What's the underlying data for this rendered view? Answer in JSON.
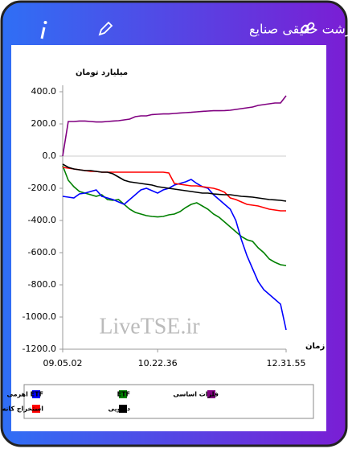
{
  "chart_data": {
    "type": "line",
    "title": "پول درشت حقیقی صنایع",
    "ylabel": "میلیارد تومان",
    "xlabel": "زمان",
    "watermark": "LiveTSE.ir",
    "categories": [
      "09.05.02",
      null,
      null,
      null,
      null,
      null,
      null,
      null,
      null,
      null,
      null,
      null,
      null,
      null,
      null,
      null,
      null,
      "10.22.36",
      null,
      null,
      null,
      null,
      null,
      null,
      null,
      null,
      null,
      null,
      null,
      null,
      null,
      null,
      null,
      null,
      null,
      null,
      null,
      null,
      null,
      null,
      "12.31.55"
    ],
    "ylim": [
      -1200,
      400
    ],
    "yticks": [
      {
        "value": 400,
        "label": "400.0"
      },
      {
        "value": 200,
        "label": "200.0"
      },
      {
        "value": 0,
        "label": "0.0"
      },
      {
        "value": -200,
        "label": "-200.0"
      },
      {
        "value": -400,
        "label": "-400.0"
      },
      {
        "value": -600,
        "label": "-600.0"
      },
      {
        "value": -800,
        "label": "-800.0"
      },
      {
        "value": -1000,
        "label": "-1000.0"
      },
      {
        "value": -1200,
        "label": "-1200.0"
      }
    ],
    "grid": false,
    "series": [
      {
        "name": "فلزات اساسی",
        "color": "#800080",
        "values": [
          0,
          215,
          215,
          218,
          218,
          215,
          212,
          212,
          215,
          218,
          220,
          225,
          230,
          245,
          250,
          250,
          258,
          260,
          262,
          262,
          265,
          268,
          270,
          272,
          275,
          278,
          280,
          282,
          282,
          283,
          285,
          290,
          295,
          300,
          305,
          315,
          320,
          325,
          330,
          330,
          375
        ]
      },
      {
        "name": "ETF",
        "color": "#008000",
        "values": [
          -60,
          -150,
          -190,
          -220,
          -230,
          -240,
          -250,
          -240,
          -270,
          -275,
          -270,
          -300,
          -330,
          -350,
          -360,
          -370,
          -375,
          -378,
          -375,
          -365,
          -360,
          -345,
          -320,
          -300,
          -290,
          -310,
          -330,
          -360,
          -380,
          -410,
          -440,
          -470,
          -500,
          -520,
          -530,
          -570,
          -600,
          -640,
          -660,
          -675,
          -680
        ]
      },
      {
        "name": "ETF اهرمی",
        "color": "#0000ff",
        "values": [
          -250,
          -255,
          -260,
          -235,
          -230,
          -220,
          -210,
          -250,
          -260,
          -270,
          -285,
          -300,
          -270,
          -240,
          -210,
          -200,
          -215,
          -230,
          -210,
          -200,
          -180,
          -170,
          -160,
          -145,
          -170,
          -190,
          -200,
          -240,
          -270,
          -300,
          -330,
          -400,
          -520,
          -620,
          -700,
          -780,
          -830,
          -860,
          -890,
          -920,
          -1080
        ]
      },
      {
        "name": "استخراج کانه های فلزی",
        "color": "#ff0000",
        "values": [
          -70,
          -75,
          -80,
          -85,
          -90,
          -95,
          -95,
          -100,
          -100,
          -100,
          -100,
          -100,
          -100,
          -100,
          -100,
          -100,
          -100,
          -100,
          -100,
          -105,
          -170,
          -175,
          -180,
          -185,
          -185,
          -190,
          -195,
          -200,
          -210,
          -225,
          -260,
          -270,
          -285,
          -300,
          -305,
          -310,
          -320,
          -330,
          -335,
          -340,
          -340
        ]
      },
      {
        "name": "دارویی",
        "color": "#000000",
        "values": [
          -50,
          -70,
          -80,
          -85,
          -90,
          -90,
          -95,
          -100,
          -100,
          -110,
          -130,
          -150,
          -160,
          -165,
          -170,
          -175,
          -180,
          -190,
          -195,
          -200,
          -205,
          -210,
          -215,
          -220,
          -225,
          -230,
          -230,
          -235,
          -238,
          -240,
          -240,
          -245,
          -250,
          -252,
          -255,
          -260,
          -265,
          -270,
          -272,
          -275,
          -280
        ]
      }
    ]
  }
}
